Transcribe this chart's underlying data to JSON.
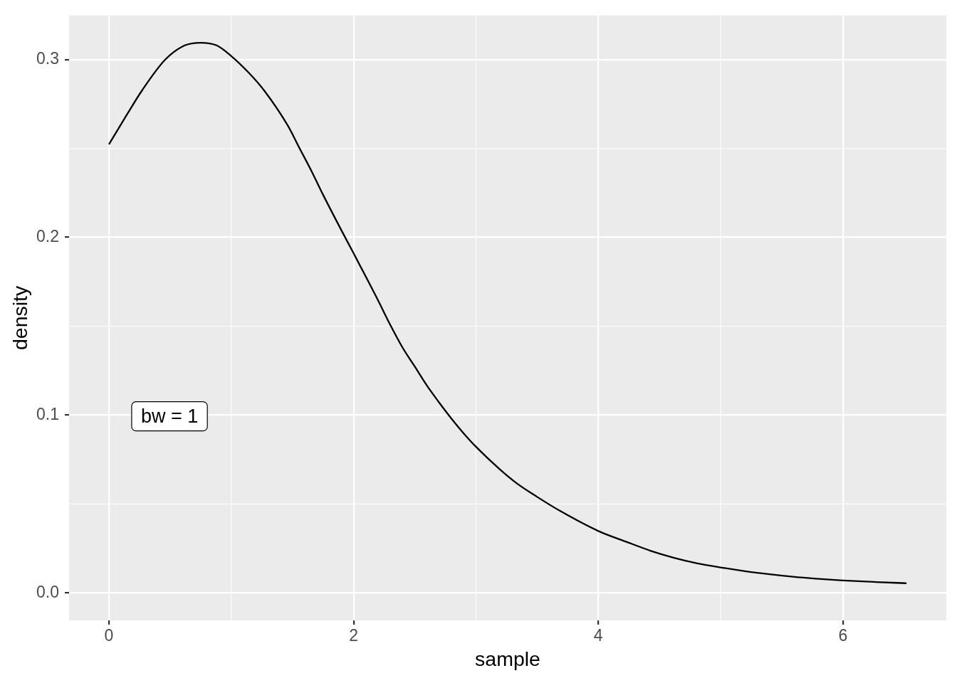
{
  "chart_data": {
    "type": "line",
    "xlabel": "sample",
    "ylabel": "density",
    "annotations": [
      "bw = 1"
    ],
    "x": [
      0,
      0.15,
      0.27,
      0.46,
      0.62,
      0.75,
      0.88,
      1.0,
      1.15,
      1.27,
      1.46,
      1.56,
      1.66,
      1.75,
      1.9,
      2.0,
      2.2,
      2.3,
      2.4,
      2.5,
      2.6,
      2.7,
      2.8,
      2.9,
      3.0,
      3.19,
      3.33,
      3.5,
      3.69,
      4.0,
      4.23,
      4.43,
      4.62,
      4.81,
      5.0,
      5.2,
      5.4,
      5.59,
      5.78,
      6.0,
      6.27,
      6.52
    ],
    "series": [
      {
        "color": "#000000",
        "values": [
          0.2523,
          0.2694,
          0.2826,
          0.3,
          0.308,
          0.3095,
          0.308,
          0.302,
          0.2921,
          0.2825,
          0.2631,
          0.2499,
          0.2367,
          0.224,
          0.204,
          0.191,
          0.1645,
          0.1507,
          0.138,
          0.1273,
          0.1165,
          0.107,
          0.098,
          0.0897,
          0.0822,
          0.0698,
          0.0618,
          0.054,
          0.046,
          0.0348,
          0.0287,
          0.0236,
          0.0197,
          0.0166,
          0.0143,
          0.0122,
          0.0105,
          0.0091,
          0.008,
          0.007,
          0.0061,
          0.0054
        ]
      }
    ],
    "xlim": [
      -0.326,
      6.845
    ],
    "ylim": [
      -0.0155,
      0.3248
    ],
    "xticks": [
      0,
      2,
      4,
      6
    ],
    "yticks": [
      {
        "value": 0,
        "label": "0.0"
      },
      0.1,
      0.2,
      0.3
    ],
    "grid": true
  }
}
